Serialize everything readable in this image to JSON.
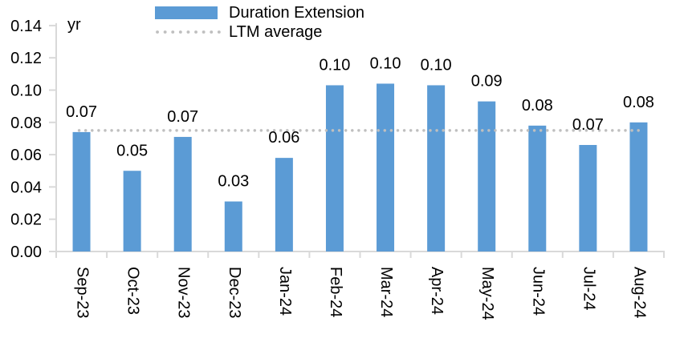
{
  "chart_data": {
    "type": "bar",
    "title": "",
    "unit_label": "yr",
    "categories": [
      "Sep-23",
      "Oct-23",
      "Nov-23",
      "Dec-23",
      "Jan-24",
      "Feb-24",
      "Mar-24",
      "Apr-24",
      "May-24",
      "Jun-24",
      "Jul-24",
      "Aug-24"
    ],
    "series": [
      {
        "name": "Duration Extension",
        "type": "bar",
        "color": "#5B9BD5",
        "values": [
          0.074,
          0.05,
          0.071,
          0.031,
          0.058,
          0.103,
          0.104,
          0.103,
          0.093,
          0.078,
          0.066,
          0.08
        ],
        "labels": [
          "0.07",
          "0.05",
          "0.07",
          "0.03",
          "0.06",
          "0.10",
          "0.10",
          "0.10",
          "0.09",
          "0.08",
          "0.07",
          "0.08"
        ]
      },
      {
        "name": "LTM average",
        "type": "line",
        "style": "dotted",
        "color": "#BFBFBF",
        "value": 0.075
      }
    ],
    "y_axis": {
      "min": 0.0,
      "max": 0.14,
      "step": 0.02,
      "tick_labels": [
        "0.00",
        "0.02",
        "0.04",
        "0.06",
        "0.08",
        "0.10",
        "0.12",
        "0.14"
      ]
    },
    "x_axis": {
      "label_rotation_deg": 90
    },
    "legend_position": "top",
    "grid": "off"
  },
  "legend": {
    "items": [
      {
        "label": "Duration Extension"
      },
      {
        "label": "LTM average"
      }
    ]
  },
  "colors": {
    "bar": "#5B9BD5",
    "avg_line": "#BFBFBF",
    "axis": "#D9D9D9",
    "text": "#000000"
  }
}
